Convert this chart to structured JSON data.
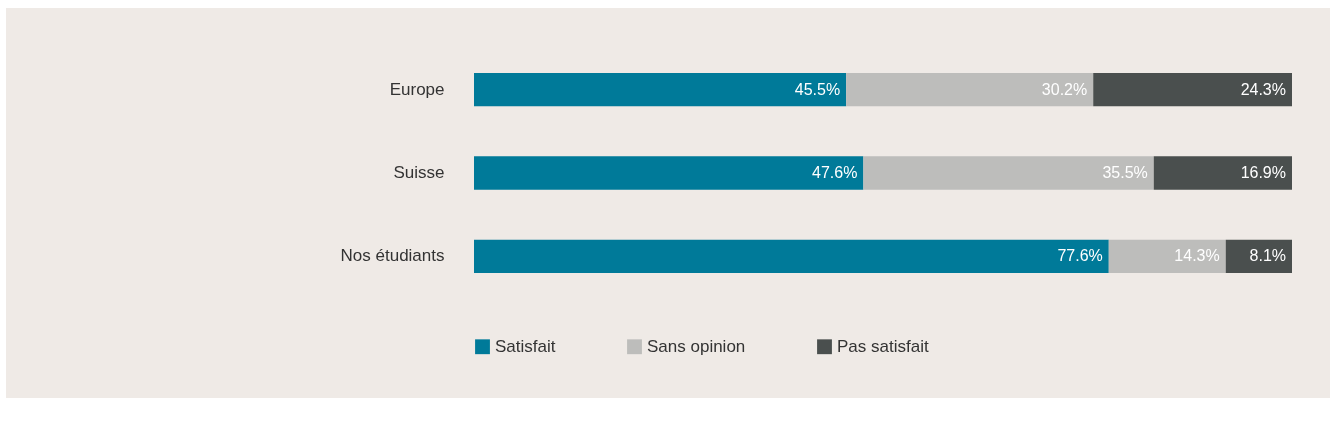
{
  "chart_data": {
    "type": "bar",
    "orientation": "horizontal",
    "stacked": true,
    "categories": [
      "Europe",
      "Suisse",
      "Nos étudiants"
    ],
    "legend": "bottom",
    "series": [
      {
        "name": "Satisfait",
        "color": "#007a99",
        "values": [
          45.5,
          47.6,
          77.6
        ],
        "value_labels": [
          "45.5%",
          "47.6%",
          "77.6%"
        ]
      },
      {
        "name": "Sans opinion",
        "color": "#bdbdbb",
        "values": [
          30.2,
          35.5,
          14.3
        ],
        "value_labels": [
          "30.2%",
          "35.5%",
          "14.3%"
        ]
      },
      {
        "name": "Pas satisfait",
        "color": "#4a4f4e",
        "values": [
          24.3,
          16.9,
          8.1
        ],
        "value_labels": [
          "24.3%",
          "16.9%",
          "8.1%"
        ]
      }
    ]
  }
}
